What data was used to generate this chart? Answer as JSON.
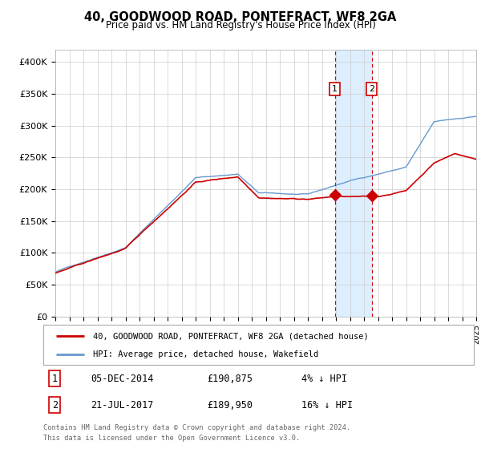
{
  "title": "40, GOODWOOD ROAD, PONTEFRACT, WF8 2GA",
  "subtitle": "Price paid vs. HM Land Registry's House Price Index (HPI)",
  "legend_line1": "40, GOODWOOD ROAD, PONTEFRACT, WF8 2GA (detached house)",
  "legend_line2": "HPI: Average price, detached house, Wakefield",
  "marker1_date": "05-DEC-2014",
  "marker1_price": 190875,
  "marker1_note": "4% ↓ HPI",
  "marker2_date": "21-JUL-2017",
  "marker2_price": 189950,
  "marker2_note": "16% ↓ HPI",
  "footer_line1": "Contains HM Land Registry data © Crown copyright and database right 2024.",
  "footer_line2": "This data is licensed under the Open Government Licence v3.0.",
  "red_color": "#cc0000",
  "blue_color": "#6699cc",
  "shade_color": "#ddeeff",
  "marker1_x": 2014.92,
  "marker2_x": 2017.55,
  "ylim_min": 0,
  "ylim_max": 420000,
  "xlim_min": 1995,
  "xlim_max": 2025,
  "yticks": [
    0,
    50000,
    100000,
    150000,
    200000,
    250000,
    300000,
    350000,
    400000
  ],
  "ytick_labels": [
    "£0",
    "£50K",
    "£100K",
    "£150K",
    "£200K",
    "£250K",
    "£300K",
    "£350K",
    "£400K"
  ],
  "marker1_price_str": "£190,875",
  "marker2_price_str": "£189,950"
}
